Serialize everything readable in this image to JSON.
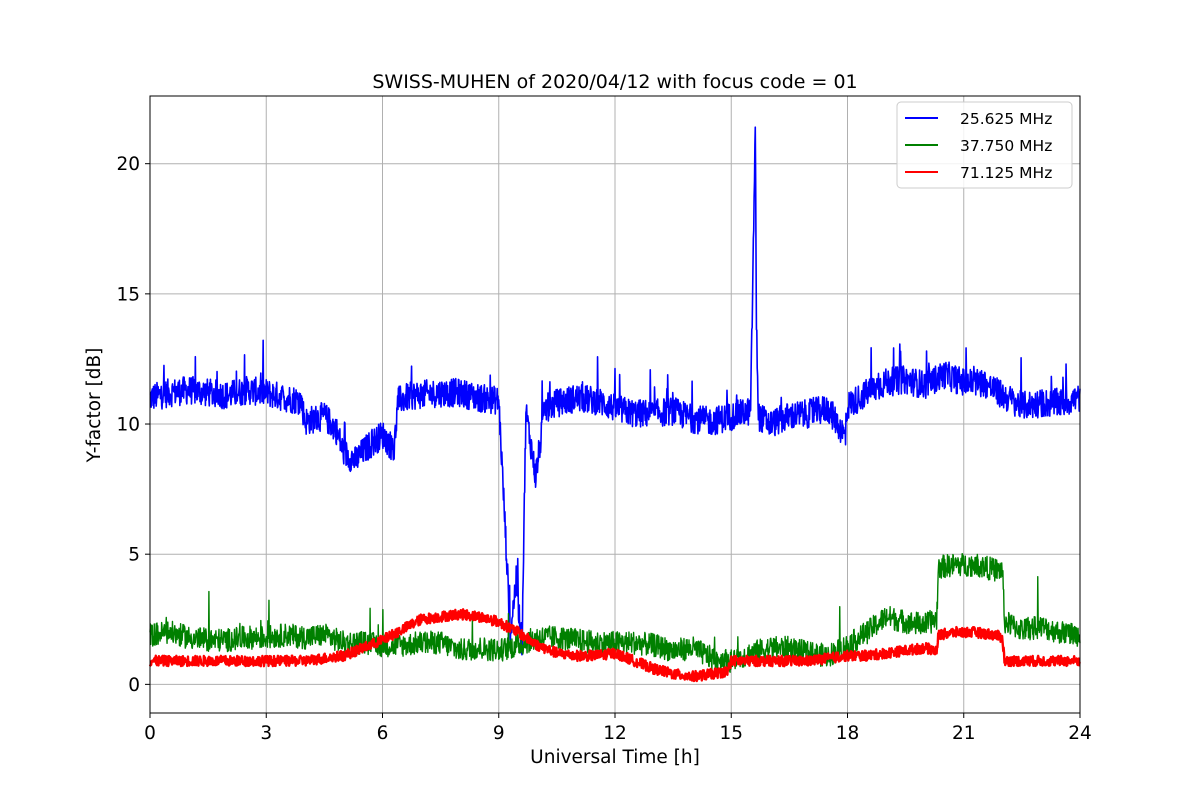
{
  "chart_data": {
    "type": "line",
    "title": "SWISS-MUHEN of 2020/04/12 with focus code = 01",
    "xlabel": "Universal Time [h]",
    "ylabel": "Y-factor [dB]",
    "xlim": [
      0,
      24
    ],
    "ylim": [
      -1.1,
      22.6
    ],
    "xticks": [
      0,
      3,
      6,
      9,
      12,
      15,
      18,
      21,
      24
    ],
    "yticks": [
      0,
      5,
      10,
      15,
      20
    ],
    "grid": true,
    "legend_position": "top-right",
    "series": [
      {
        "name": "25.625 MHz",
        "color": "#0000ff",
        "x": [
          0,
          0.5,
          1,
          1.5,
          2,
          2.5,
          3,
          3.5,
          3.9,
          4.0,
          4.5,
          4.8,
          5.0,
          5.3,
          5.6,
          6.0,
          6.3,
          6.4,
          6.8,
          7.5,
          8.0,
          8.5,
          9.0,
          9.15,
          9.3,
          9.45,
          9.6,
          9.7,
          9.8,
          9.95,
          10.2,
          10.5,
          11.0,
          11.5,
          11.7,
          12.0,
          12.5,
          13.0,
          13.5,
          14.0,
          14.5,
          15.0,
          15.5,
          15.62,
          15.65,
          15.7,
          16.0,
          16.5,
          17.0,
          17.5,
          17.95,
          18.0,
          18.5,
          19.0,
          19.5,
          20.0,
          20.5,
          21.0,
          21.5,
          22.0,
          22.5,
          23.0,
          23.5,
          24.0
        ],
        "values": [
          11.0,
          11.2,
          11.3,
          11.2,
          11.1,
          11.3,
          11.2,
          11.0,
          10.9,
          10.1,
          10.3,
          9.8,
          8.9,
          8.6,
          9.1,
          9.6,
          9.0,
          10.9,
          11.1,
          11.2,
          11.2,
          11.0,
          10.9,
          6.5,
          2.0,
          4.0,
          1.5,
          10.5,
          9.5,
          8.0,
          10.6,
          10.8,
          11.0,
          10.9,
          10.8,
          10.6,
          10.4,
          10.4,
          10.5,
          10.2,
          10.1,
          10.3,
          10.5,
          21.3,
          14.0,
          10.3,
          10.0,
          10.3,
          10.4,
          10.6,
          9.5,
          10.7,
          11.2,
          11.6,
          11.7,
          11.5,
          11.9,
          11.6,
          11.6,
          11.1,
          10.7,
          10.8,
          10.8,
          11.0
        ]
      },
      {
        "name": "37.750 MHz",
        "color": "#008000",
        "x": [
          0,
          0.5,
          1,
          1.5,
          2,
          2.5,
          3,
          3.5,
          4.0,
          4.5,
          5.0,
          5.5,
          6.0,
          6.5,
          7.0,
          7.5,
          8.0,
          8.5,
          9.0,
          9.5,
          10.0,
          10.5,
          11.0,
          11.5,
          12.0,
          12.5,
          13.0,
          13.5,
          14.0,
          14.5,
          15.0,
          15.5,
          16.0,
          16.5,
          17.0,
          17.5,
          18.0,
          18.5,
          19.0,
          19.5,
          20.0,
          20.3,
          20.35,
          20.8,
          21.3,
          21.8,
          22.0,
          22.05,
          22.5,
          23.0,
          23.5,
          24.0
        ],
        "values": [
          1.9,
          2.0,
          1.8,
          1.7,
          1.7,
          1.8,
          1.8,
          1.9,
          1.8,
          1.9,
          1.6,
          1.6,
          1.5,
          1.5,
          1.6,
          1.6,
          1.3,
          1.4,
          1.3,
          1.5,
          1.8,
          1.8,
          1.7,
          1.6,
          1.6,
          1.6,
          1.5,
          1.3,
          1.4,
          1.0,
          0.9,
          1.2,
          1.4,
          1.4,
          1.2,
          1.1,
          1.5,
          2.0,
          2.6,
          2.4,
          2.3,
          2.5,
          4.5,
          4.6,
          4.6,
          4.4,
          4.4,
          2.4,
          2.1,
          2.2,
          2.0,
          1.9
        ]
      },
      {
        "name": "71.125 MHz",
        "color": "#ff0000",
        "x": [
          0,
          0.5,
          1,
          1.5,
          2,
          2.5,
          3,
          3.5,
          4.0,
          4.5,
          5.0,
          5.5,
          6.0,
          6.5,
          7.0,
          7.5,
          8.0,
          8.5,
          9.0,
          9.5,
          10.0,
          10.5,
          11.0,
          11.5,
          12.0,
          12.5,
          13.0,
          13.5,
          14.0,
          14.5,
          14.9,
          15.0,
          15.5,
          16.0,
          16.5,
          17.0,
          17.5,
          18.0,
          18.5,
          19.0,
          19.5,
          20.0,
          20.3,
          20.35,
          20.8,
          21.3,
          21.8,
          22.0,
          22.05,
          22.5,
          23.0,
          23.5,
          24.0
        ],
        "values": [
          0.9,
          0.9,
          0.9,
          0.9,
          0.9,
          0.9,
          0.9,
          0.9,
          0.9,
          1.0,
          1.1,
          1.4,
          1.7,
          2.1,
          2.5,
          2.6,
          2.7,
          2.6,
          2.4,
          2.0,
          1.5,
          1.2,
          1.1,
          1.1,
          1.2,
          0.9,
          0.6,
          0.4,
          0.3,
          0.4,
          0.5,
          0.9,
          0.9,
          0.9,
          0.9,
          0.9,
          1.0,
          1.1,
          1.1,
          1.2,
          1.3,
          1.4,
          1.3,
          1.9,
          2.0,
          2.0,
          1.9,
          1.8,
          0.9,
          0.9,
          0.9,
          0.9,
          0.9
        ]
      }
    ]
  }
}
